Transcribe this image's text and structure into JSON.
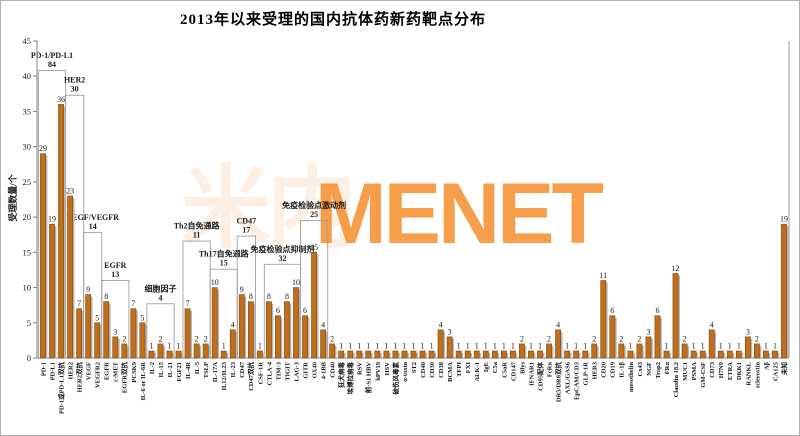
{
  "page": {
    "title": "2013年以来受理的国内抗体药新药靶点分布"
  },
  "watermark": {
    "cn": "米内",
    "en": "MENET"
  },
  "colors": {
    "bar_fill": "#c06e1c",
    "bar_edge": "#7c4a10",
    "bar_shadow": "#b7b7b7",
    "axis": "#808080",
    "bracket": "#9e9e9e",
    "text": "#1a1a1a",
    "watermark_cn": "rgba(240,130,40,0.13)",
    "watermark_en": "rgba(245,134,30,0.8)"
  },
  "chart_data": {
    "type": "bar",
    "title": "2013年以来受理的国内抗体药新药靶点分布",
    "xlabel": "",
    "ylabel": "受理数量/个",
    "ylim": [
      0,
      45
    ],
    "yticks": [
      0,
      5,
      10,
      15,
      20,
      25,
      30,
      35,
      40,
      45
    ],
    "grid": false,
    "legend": false,
    "categories": [
      "PD-1",
      "PD-L1",
      "PD-1或PD-L1双抗",
      "HER2",
      "HER2双抗",
      "VEGF",
      "VEGFR2",
      "EGFR",
      "c-MET",
      "EGFR双抗",
      "PCSK9",
      "IL-6 or IL-6R",
      "IL-2",
      "IL-15",
      "IL-21",
      "FGF21",
      "IL-4R",
      "IL-5",
      "TSLP",
      "IL-17A",
      "IL12/IL23",
      "IL-23",
      "CD47",
      "CD47双抗",
      "CSF-1R",
      "CTLA-4",
      "TIM-3",
      "TIGIT",
      "LAG-3",
      "GITR",
      "OX40",
      "4-1BB",
      "CD40",
      "狂犬病毒",
      "埃博拉病毒",
      "RSV",
      "前-S1 HBV",
      "hPV19",
      "HSV",
      "破伤风毒素",
      "α-toxin",
      "ST2",
      "CD40",
      "CD30",
      "CD38",
      "BCMA",
      "TFPI",
      "FXI",
      "ALK-1",
      "IgE",
      "C5a",
      "C5aR",
      "CD147",
      "Blys",
      "IFNAR1",
      "CD95配体",
      "FcRn",
      "DR5/DR8双抗",
      "AXL/GAS6",
      "EpCAM/CD3",
      "GLP-1R",
      "HER3",
      "CD20",
      "CD19",
      "IL-1β",
      "mesothelin",
      "Cx43",
      "NGF",
      "Trop2",
      "FRα",
      "Claudin 18.2",
      "MUC1",
      "PSMA",
      "GM-CSF",
      "CD73",
      "H7N9",
      "ETRA",
      "DKK1",
      "RANKL",
      "sclerostin",
      "Aβ",
      "CA125",
      "未知"
    ],
    "values": [
      29,
      19,
      36,
      23,
      7,
      9,
      5,
      8,
      3,
      2,
      7,
      5,
      1,
      2,
      1,
      1,
      7,
      2,
      2,
      10,
      1,
      4,
      9,
      8,
      1,
      8,
      6,
      8,
      10,
      6,
      15,
      4,
      2,
      1,
      1,
      1,
      1,
      1,
      1,
      1,
      1,
      1,
      1,
      1,
      4,
      3,
      1,
      1,
      1,
      1,
      1,
      1,
      1,
      2,
      1,
      1,
      2,
      4,
      1,
      1,
      1,
      2,
      11,
      6,
      2,
      1,
      2,
      3,
      6,
      1,
      12,
      2,
      1,
      1,
      4,
      1,
      1,
      1,
      3,
      2,
      1,
      1,
      19
    ],
    "groups": [
      {
        "label": "PD-1/PD-L1",
        "value": 84,
        "start": 0,
        "end": 2,
        "top": 40.8
      },
      {
        "label": "HER2",
        "value": 30,
        "start": 3,
        "end": 4,
        "top": 37.3
      },
      {
        "label": "VEGF/VEGFR",
        "value": 14,
        "start": 5,
        "end": 6,
        "top": 17.8
      },
      {
        "label": "EGFR",
        "value": 13,
        "start": 7,
        "end": 9,
        "top": 11.0
      },
      {
        "label": "细胞因子",
        "value": 4,
        "start": 12,
        "end": 14,
        "top": 7.7
      },
      {
        "label": "Th2自免通路",
        "value": 11,
        "start": 16,
        "end": 18,
        "top": 16.6
      },
      {
        "label": "Th17自免通路",
        "value": 15,
        "start": 19,
        "end": 21,
        "top": 12.6
      },
      {
        "label": "CD47",
        "value": 17,
        "start": 22,
        "end": 23,
        "top": 17.3
      },
      {
        "label": "免疫检验点抑制剂",
        "value": 32,
        "start": 25,
        "end": 28,
        "top": 13.3
      },
      {
        "label": "免疫检验点激动剂",
        "value": 25,
        "start": 29,
        "end": 31,
        "top": 19.5
      }
    ]
  }
}
